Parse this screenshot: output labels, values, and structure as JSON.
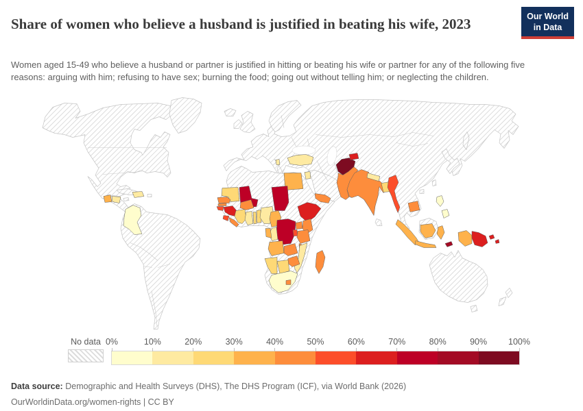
{
  "header": {
    "title": "Share of women who believe a husband is justified in beating his wife, 2023",
    "logo": {
      "line1": "Our World",
      "line2": "in Data"
    }
  },
  "subtitle": "Women aged 15-49 who believe a husband or partner is justified in hitting or beating his wife or partner for any of the following five reasons: arguing with him; refusing to have sex; burning the food; going out without telling him; or neglecting the children.",
  "footer": {
    "source_label": "Data source:",
    "source_value": "Demographic and Health Surveys (DHS), The DHS Program (ICF), via World Bank (2026)",
    "note": "OurWorldinData.org/women-rights | CC BY"
  },
  "colors": {
    "logo_bg": "#12305c",
    "logo_stripe": "#ce3e36",
    "hatch_line": "#d6d6d6",
    "land_border": "#c4c4c4",
    "country_border": "#5f5f5f"
  },
  "chart_data": {
    "type": "heatmap",
    "subtype": "choropleth-world-map",
    "title": "Share of women who believe a husband is justified in beating his wife, 2023",
    "unit": "% of women aged 15-49",
    "no_data_label": "No data",
    "legend_position": "bottom",
    "tick_labels": [
      "0%",
      "10%",
      "20%",
      "30%",
      "40%",
      "50%",
      "60%",
      "70%",
      "80%",
      "90%",
      "100%"
    ],
    "bin_edges_percent": [
      0,
      10,
      20,
      30,
      40,
      50,
      60,
      70,
      80,
      90,
      100
    ],
    "bin_colors": [
      "#fffdcd",
      "#feeaa1",
      "#fed976",
      "#feb24c",
      "#fd8d3c",
      "#fc4e2a",
      "#dc1f1f",
      "#bd0026",
      "#a30b25",
      "#7d0b21"
    ],
    "countries": [
      {
        "key": "colombia",
        "name": "Colombia",
        "bin": 0,
        "value": "0-10%"
      },
      {
        "key": "haiti",
        "name": "Haiti",
        "bin": 1,
        "value": "10-20%"
      },
      {
        "key": "guatemala",
        "name": "Guatemala",
        "bin": 3,
        "value": "30-40%"
      },
      {
        "key": "honduras",
        "name": "Honduras",
        "bin": 1,
        "value": "10-20%"
      },
      {
        "key": "turkey",
        "name": "Turkey",
        "bin": 1,
        "value": "10-20%"
      },
      {
        "key": "albania",
        "name": "Albania",
        "bin": 1,
        "value": "10-20%"
      },
      {
        "key": "jordan",
        "name": "Jordan",
        "bin": 1,
        "value": "10-20%"
      },
      {
        "key": "egypt",
        "name": "Egypt",
        "bin": 3,
        "value": "30-40%"
      },
      {
        "key": "yemen",
        "name": "Yemen",
        "bin": 4,
        "value": "40-50%"
      },
      {
        "key": "afghanistan",
        "name": "Afghanistan",
        "bin": 9,
        "value": "90-100%"
      },
      {
        "key": "tajikistan",
        "name": "Tajikistan",
        "bin": 6,
        "value": "60-70%"
      },
      {
        "key": "pakistan",
        "name": "Pakistan",
        "bin": 4,
        "value": "40-50%"
      },
      {
        "key": "india",
        "name": "India",
        "bin": 4,
        "value": "40-50%"
      },
      {
        "key": "nepal",
        "name": "Nepal",
        "bin": 1,
        "value": "10-20%"
      },
      {
        "key": "bangladesh",
        "name": "Bangladesh",
        "bin": 2,
        "value": "20-30%"
      },
      {
        "key": "myanmar",
        "name": "Myanmar",
        "bin": 5,
        "value": "50-60%"
      },
      {
        "key": "cambodia",
        "name": "Cambodia",
        "bin": 4,
        "value": "40-50%"
      },
      {
        "key": "philippines",
        "name": "Philippines",
        "bin": 0,
        "value": "0-10%"
      },
      {
        "key": "indonesia",
        "name": "Indonesia",
        "bin": 3,
        "value": "30-40%"
      },
      {
        "key": "timor",
        "name": "Timor-Leste",
        "bin": 8,
        "value": "80-90%"
      },
      {
        "key": "png",
        "name": "Papua New Guinea",
        "bin": 6,
        "value": "60-70%"
      },
      {
        "key": "mauritania",
        "name": "Mauritania",
        "bin": 2,
        "value": "20-30%"
      },
      {
        "key": "senegal",
        "name": "Senegal",
        "bin": 4,
        "value": "40-50%"
      },
      {
        "key": "gambia",
        "name": "Gambia",
        "bin": 4,
        "value": "40-50%"
      },
      {
        "key": "guinea_bissau",
        "name": "Guinea-Bissau",
        "bin": 5,
        "value": "50-60%"
      },
      {
        "key": "guinea",
        "name": "Guinea",
        "bin": 6,
        "value": "60-70%"
      },
      {
        "key": "sierra_leone",
        "name": "Sierra Leone",
        "bin": 5,
        "value": "50-60%"
      },
      {
        "key": "liberia",
        "name": "Liberia",
        "bin": 4,
        "value": "40-50%"
      },
      {
        "key": "mali",
        "name": "Mali",
        "bin": 7,
        "value": "70-80%"
      },
      {
        "key": "burkina_faso",
        "name": "Burkina Faso",
        "bin": 4,
        "value": "40-50%"
      },
      {
        "key": "cote_divoire",
        "name": "Côte d'Ivoire",
        "bin": 2,
        "value": "20-30%"
      },
      {
        "key": "ghana",
        "name": "Ghana",
        "bin": 1,
        "value": "10-20%"
      },
      {
        "key": "togo",
        "name": "Togo",
        "bin": 2,
        "value": "20-30%"
      },
      {
        "key": "benin",
        "name": "Benin",
        "bin": 2,
        "value": "20-30%"
      },
      {
        "key": "nigeria",
        "name": "Nigeria",
        "bin": 1,
        "value": "10-20%"
      },
      {
        "key": "chad",
        "name": "Chad",
        "bin": 7,
        "value": "70-80%"
      },
      {
        "key": "cameroon",
        "name": "Cameroon",
        "bin": 3,
        "value": "30-40%"
      },
      {
        "key": "ethiopia",
        "name": "Ethiopia",
        "bin": 6,
        "value": "60-70%"
      },
      {
        "key": "drc",
        "name": "Democratic Republic of Congo",
        "bin": 7,
        "value": "70-80%"
      },
      {
        "key": "congo",
        "name": "Congo",
        "bin": 1,
        "value": "10-20%"
      },
      {
        "key": "gabon",
        "name": "Gabon",
        "bin": 3,
        "value": "30-40%"
      },
      {
        "key": "uganda",
        "name": "Uganda",
        "bin": 4,
        "value": "40-50%"
      },
      {
        "key": "kenya",
        "name": "Kenya",
        "bin": 4,
        "value": "40-50%"
      },
      {
        "key": "rwanda_burundi",
        "name": "Rwanda/Burundi",
        "bin": 5,
        "value": "50-60%"
      },
      {
        "key": "tanzania",
        "name": "Tanzania",
        "bin": 4,
        "value": "40-50%"
      },
      {
        "key": "angola",
        "name": "Angola",
        "bin": 3,
        "value": "30-40%"
      },
      {
        "key": "zambia",
        "name": "Zambia",
        "bin": 4,
        "value": "40-50%"
      },
      {
        "key": "malawi",
        "name": "Malawi",
        "bin": 4,
        "value": "40-50%"
      },
      {
        "key": "zimbabwe",
        "name": "Zimbabwe",
        "bin": 4,
        "value": "40-50%"
      },
      {
        "key": "mozambique",
        "name": "Mozambique",
        "bin": 1,
        "value": "10-20%"
      },
      {
        "key": "madagascar",
        "name": "Madagascar",
        "bin": 4,
        "value": "40-50%"
      },
      {
        "key": "namibia",
        "name": "Namibia",
        "bin": 2,
        "value": "20-30%"
      },
      {
        "key": "botswana",
        "name": "Botswana",
        "bin": 2,
        "value": "20-30%"
      },
      {
        "key": "south_africa",
        "name": "South Africa",
        "bin": 0,
        "value": "0-10%"
      },
      {
        "key": "lesotho",
        "name": "Lesotho",
        "bin": 4,
        "value": "40-50%"
      }
    ]
  }
}
